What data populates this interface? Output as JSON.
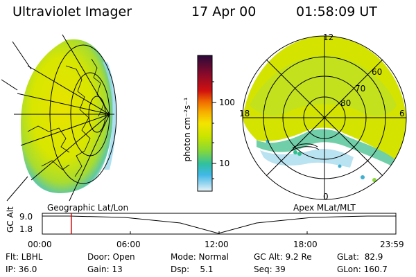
{
  "header": {
    "instrument": "Ultraviolet Imager",
    "date": "17 Apr 00",
    "time": "01:58:09 UT"
  },
  "colorbar": {
    "unit_label": "photon cm⁻²s⁻¹",
    "ticks": [
      "100",
      "10"
    ],
    "colors": [
      "#2a0a3a",
      "#8a0a2a",
      "#d01010",
      "#f06a00",
      "#f8b000",
      "#f4e400",
      "#c8e400",
      "#88d838",
      "#30c0a0",
      "#40b8e8",
      "#a0d8f0",
      "#e8f4f8"
    ]
  },
  "polar_plot": {
    "mlt_labels": {
      "top": "12",
      "left": "18",
      "right": "6",
      "bottom": "0"
    },
    "lat_rings": [
      "60",
      "70",
      "80"
    ]
  },
  "timeline": {
    "left_label": "Geographic Lat/Lon",
    "right_label": "Apex MLat/MLT",
    "y_axis_label": "GC Alt",
    "y_ticks": [
      "9.0",
      "1.8"
    ],
    "x_ticks": [
      "00:00",
      "06:00",
      "12:00",
      "18:00",
      "23:59"
    ],
    "current_time_fraction": 0.082,
    "marker_color": "#d00000"
  },
  "status": {
    "flt": "Flt: LBHL",
    "ip": "IP: 36.0",
    "door": "Door: Open",
    "gain": "Gain: 13",
    "mode": "Mode: Normal",
    "dsp": "Dsp:    5.1",
    "gc_alt": "GC Alt: 9.2 Re",
    "seq": "Seq: 39",
    "glat": "GLat:  82.9",
    "glon": "GLon: 160.7"
  }
}
